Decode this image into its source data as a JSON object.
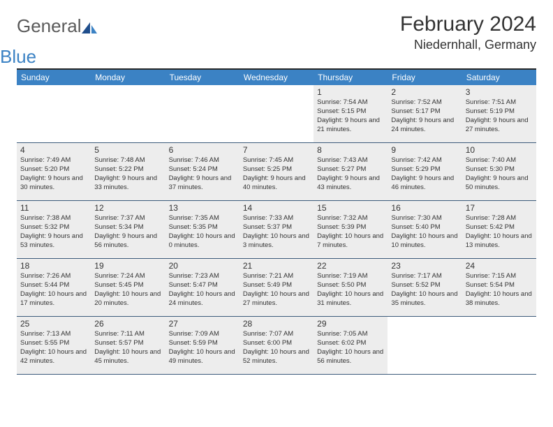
{
  "logo": {
    "text1": "General",
    "text2": "Blue"
  },
  "title": "February 2024",
  "location": "Niedernhall, Germany",
  "colors": {
    "header_bg": "#3b82c4",
    "header_text": "#ffffff",
    "cell_shade": "#ededed",
    "border": "#3b5a7a",
    "top_border": "#2a2a2a",
    "text": "#333333",
    "logo_gray": "#5a5a5a",
    "logo_blue": "#3b82c4"
  },
  "day_names": [
    "Sunday",
    "Monday",
    "Tuesday",
    "Wednesday",
    "Thursday",
    "Friday",
    "Saturday"
  ],
  "weeks": [
    [
      null,
      null,
      null,
      null,
      {
        "n": "1",
        "sr": "7:54 AM",
        "ss": "5:15 PM",
        "dl": "9 hours and 21 minutes."
      },
      {
        "n": "2",
        "sr": "7:52 AM",
        "ss": "5:17 PM",
        "dl": "9 hours and 24 minutes."
      },
      {
        "n": "3",
        "sr": "7:51 AM",
        "ss": "5:19 PM",
        "dl": "9 hours and 27 minutes."
      }
    ],
    [
      {
        "n": "4",
        "sr": "7:49 AM",
        "ss": "5:20 PM",
        "dl": "9 hours and 30 minutes."
      },
      {
        "n": "5",
        "sr": "7:48 AM",
        "ss": "5:22 PM",
        "dl": "9 hours and 33 minutes."
      },
      {
        "n": "6",
        "sr": "7:46 AM",
        "ss": "5:24 PM",
        "dl": "9 hours and 37 minutes."
      },
      {
        "n": "7",
        "sr": "7:45 AM",
        "ss": "5:25 PM",
        "dl": "9 hours and 40 minutes."
      },
      {
        "n": "8",
        "sr": "7:43 AM",
        "ss": "5:27 PM",
        "dl": "9 hours and 43 minutes."
      },
      {
        "n": "9",
        "sr": "7:42 AM",
        "ss": "5:29 PM",
        "dl": "9 hours and 46 minutes."
      },
      {
        "n": "10",
        "sr": "7:40 AM",
        "ss": "5:30 PM",
        "dl": "9 hours and 50 minutes."
      }
    ],
    [
      {
        "n": "11",
        "sr": "7:38 AM",
        "ss": "5:32 PM",
        "dl": "9 hours and 53 minutes."
      },
      {
        "n": "12",
        "sr": "7:37 AM",
        "ss": "5:34 PM",
        "dl": "9 hours and 56 minutes."
      },
      {
        "n": "13",
        "sr": "7:35 AM",
        "ss": "5:35 PM",
        "dl": "10 hours and 0 minutes."
      },
      {
        "n": "14",
        "sr": "7:33 AM",
        "ss": "5:37 PM",
        "dl": "10 hours and 3 minutes."
      },
      {
        "n": "15",
        "sr": "7:32 AM",
        "ss": "5:39 PM",
        "dl": "10 hours and 7 minutes."
      },
      {
        "n": "16",
        "sr": "7:30 AM",
        "ss": "5:40 PM",
        "dl": "10 hours and 10 minutes."
      },
      {
        "n": "17",
        "sr": "7:28 AM",
        "ss": "5:42 PM",
        "dl": "10 hours and 13 minutes."
      }
    ],
    [
      {
        "n": "18",
        "sr": "7:26 AM",
        "ss": "5:44 PM",
        "dl": "10 hours and 17 minutes."
      },
      {
        "n": "19",
        "sr": "7:24 AM",
        "ss": "5:45 PM",
        "dl": "10 hours and 20 minutes."
      },
      {
        "n": "20",
        "sr": "7:23 AM",
        "ss": "5:47 PM",
        "dl": "10 hours and 24 minutes."
      },
      {
        "n": "21",
        "sr": "7:21 AM",
        "ss": "5:49 PM",
        "dl": "10 hours and 27 minutes."
      },
      {
        "n": "22",
        "sr": "7:19 AM",
        "ss": "5:50 PM",
        "dl": "10 hours and 31 minutes."
      },
      {
        "n": "23",
        "sr": "7:17 AM",
        "ss": "5:52 PM",
        "dl": "10 hours and 35 minutes."
      },
      {
        "n": "24",
        "sr": "7:15 AM",
        "ss": "5:54 PM",
        "dl": "10 hours and 38 minutes."
      }
    ],
    [
      {
        "n": "25",
        "sr": "7:13 AM",
        "ss": "5:55 PM",
        "dl": "10 hours and 42 minutes."
      },
      {
        "n": "26",
        "sr": "7:11 AM",
        "ss": "5:57 PM",
        "dl": "10 hours and 45 minutes."
      },
      {
        "n": "27",
        "sr": "7:09 AM",
        "ss": "5:59 PM",
        "dl": "10 hours and 49 minutes."
      },
      {
        "n": "28",
        "sr": "7:07 AM",
        "ss": "6:00 PM",
        "dl": "10 hours and 52 minutes."
      },
      {
        "n": "29",
        "sr": "7:05 AM",
        "ss": "6:02 PM",
        "dl": "10 hours and 56 minutes."
      },
      null,
      null
    ]
  ],
  "labels": {
    "sunrise": "Sunrise:",
    "sunset": "Sunset:",
    "daylight": "Daylight:"
  }
}
